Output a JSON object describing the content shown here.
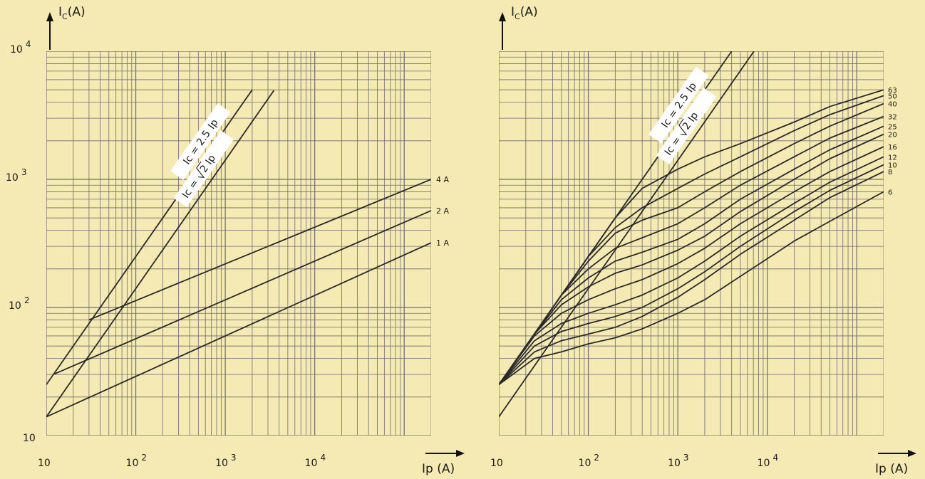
{
  "chart_data": [
    {
      "type": "line",
      "title": "",
      "xlabel": "Ip (A)",
      "ylabel": "IC(A)",
      "ylabel_main": "I",
      "ylabel_sub": "C",
      "ylabel_unit": "(A)",
      "x_scale": "log",
      "y_scale": "log",
      "xlim": [
        10,
        200000
      ],
      "ylim": [
        10,
        10000
      ],
      "grid": true,
      "x_ticks": [
        {
          "base": "10",
          "exp": "",
          "value": 10
        },
        {
          "base": "10",
          "exp": "2",
          "value": 100
        },
        {
          "base": "10",
          "exp": "3",
          "value": 1000
        },
        {
          "base": "10",
          "exp": "4",
          "value": 10000
        }
      ],
      "y_ticks": [
        {
          "base": "10",
          "exp": "",
          "value": 10
        },
        {
          "base": "10",
          "exp": "2",
          "value": 100
        },
        {
          "base": "10",
          "exp": "3",
          "value": 1000
        },
        {
          "base": "10",
          "exp": "4",
          "value": 10000
        }
      ],
      "reference_lines": [
        {
          "name": "Ic = 2.5 Ip",
          "label_left": "Ic = 2.5",
          "label_right": "Ip",
          "x": [
            10,
            2000
          ],
          "y": [
            25,
            5000
          ]
        },
        {
          "name": "Ic = √2 Ip",
          "label_left": "Ic =",
          "label_right": "2 Ip",
          "x": [
            10,
            3500
          ],
          "y": [
            14,
            4950
          ]
        }
      ],
      "series": [
        {
          "name": "4 A",
          "x": [
            30,
            200000
          ],
          "y": [
            80,
            1000
          ]
        },
        {
          "name": "2 A",
          "x": [
            12,
            200000
          ],
          "y": [
            30,
            570
          ]
        },
        {
          "name": "1 A",
          "x": [
            10,
            200000
          ],
          "y": [
            14,
            320
          ]
        }
      ]
    },
    {
      "type": "line",
      "title": "",
      "xlabel": "Ip (A)",
      "ylabel": "IC(A)",
      "ylabel_main": "I",
      "ylabel_sub": "C",
      "ylabel_unit": "(A)",
      "x_scale": "log",
      "y_scale": "log",
      "xlim": [
        10,
        200000
      ],
      "ylim": [
        10,
        10000
      ],
      "grid": true,
      "x_ticks": [
        {
          "base": "10",
          "exp": "",
          "value": 10
        },
        {
          "base": "10",
          "exp": "2",
          "value": 100
        },
        {
          "base": "10",
          "exp": "3",
          "value": 1000
        },
        {
          "base": "10",
          "exp": "4",
          "value": 10000
        }
      ],
      "reference_lines": [
        {
          "name": "Ic = 2.5 Ip",
          "label_left": "Ic = 2.5",
          "label_right": "Ip",
          "x": [
            10,
            4000
          ],
          "y": [
            25,
            10000
          ]
        },
        {
          "name": "Ic = √2 Ip",
          "label_left": "Ic =",
          "label_right": "2 Ip",
          "x": [
            10,
            7100
          ],
          "y": [
            14,
            10000
          ]
        }
      ],
      "series": [
        {
          "name": "63",
          "x": [
            10,
            25,
            50,
            100,
            200,
            400,
            1000,
            2000,
            5000,
            20000,
            50000,
            200000
          ],
          "y": [
            25,
            62,
            125,
            250,
            500,
            850,
            1200,
            1500,
            1900,
            2800,
            3700,
            5000
          ]
        },
        {
          "name": "50",
          "x": [
            10,
            25,
            50,
            100,
            200,
            400,
            1000,
            2000,
            5000,
            20000,
            50000,
            200000
          ],
          "y": [
            25,
            62,
            125,
            250,
            420,
            600,
            850,
            1100,
            1500,
            2400,
            3200,
            4500
          ]
        },
        {
          "name": "40",
          "x": [
            10,
            25,
            50,
            100,
            200,
            400,
            1000,
            2000,
            5000,
            20000,
            50000,
            200000
          ],
          "y": [
            25,
            62,
            125,
            230,
            380,
            480,
            600,
            800,
            1150,
            1900,
            2600,
            3900
          ]
        },
        {
          "name": "32",
          "x": [
            10,
            25,
            50,
            100,
            200,
            400,
            1000,
            2000,
            5000,
            20000,
            50000,
            200000
          ],
          "y": [
            25,
            62,
            125,
            200,
            290,
            350,
            450,
            600,
            900,
            1500,
            2100,
            3100
          ]
        },
        {
          "name": "25",
          "x": [
            10,
            25,
            50,
            100,
            200,
            400,
            1000,
            2000,
            5000,
            20000,
            50000,
            200000
          ],
          "y": [
            25,
            62,
            115,
            170,
            230,
            270,
            340,
            450,
            700,
            1200,
            1700,
            2600
          ]
        },
        {
          "name": "20",
          "x": [
            10,
            25,
            50,
            100,
            200,
            400,
            1000,
            2000,
            5000,
            20000,
            50000,
            200000
          ],
          "y": [
            25,
            62,
            105,
            145,
            185,
            215,
            280,
            360,
            560,
            1000,
            1450,
            2250
          ]
        },
        {
          "name": "16",
          "x": [
            10,
            25,
            50,
            100,
            200,
            400,
            1000,
            2000,
            5000,
            20000,
            50000,
            200000
          ],
          "y": [
            25,
            60,
            90,
            115,
            140,
            165,
            220,
            290,
            450,
            800,
            1150,
            1800
          ]
        },
        {
          "name": "12",
          "x": [
            10,
            25,
            50,
            100,
            200,
            400,
            1000,
            2000,
            5000,
            20000,
            50000,
            200000
          ],
          "y": [
            25,
            55,
            75,
            90,
            105,
            125,
            170,
            230,
            360,
            650,
            950,
            1500
          ]
        },
        {
          "name": "10",
          "x": [
            10,
            25,
            50,
            100,
            200,
            400,
            1000,
            2000,
            5000,
            20000,
            50000,
            200000
          ],
          "y": [
            25,
            50,
            65,
            75,
            85,
            100,
            140,
            190,
            300,
            560,
            820,
            1300
          ]
        },
        {
          "name": "8",
          "x": [
            10,
            25,
            50,
            100,
            200,
            400,
            1000,
            2000,
            5000,
            20000,
            50000,
            200000
          ],
          "y": [
            25,
            45,
            55,
            62,
            70,
            85,
            120,
            165,
            260,
            480,
            720,
            1150
          ]
        },
        {
          "name": "6",
          "x": [
            10,
            25,
            50,
            100,
            200,
            400,
            1000,
            2000,
            5000,
            20000,
            50000,
            200000
          ],
          "y": [
            25,
            40,
            45,
            52,
            58,
            68,
            90,
            115,
            175,
            330,
            470,
            800
          ]
        }
      ]
    }
  ]
}
